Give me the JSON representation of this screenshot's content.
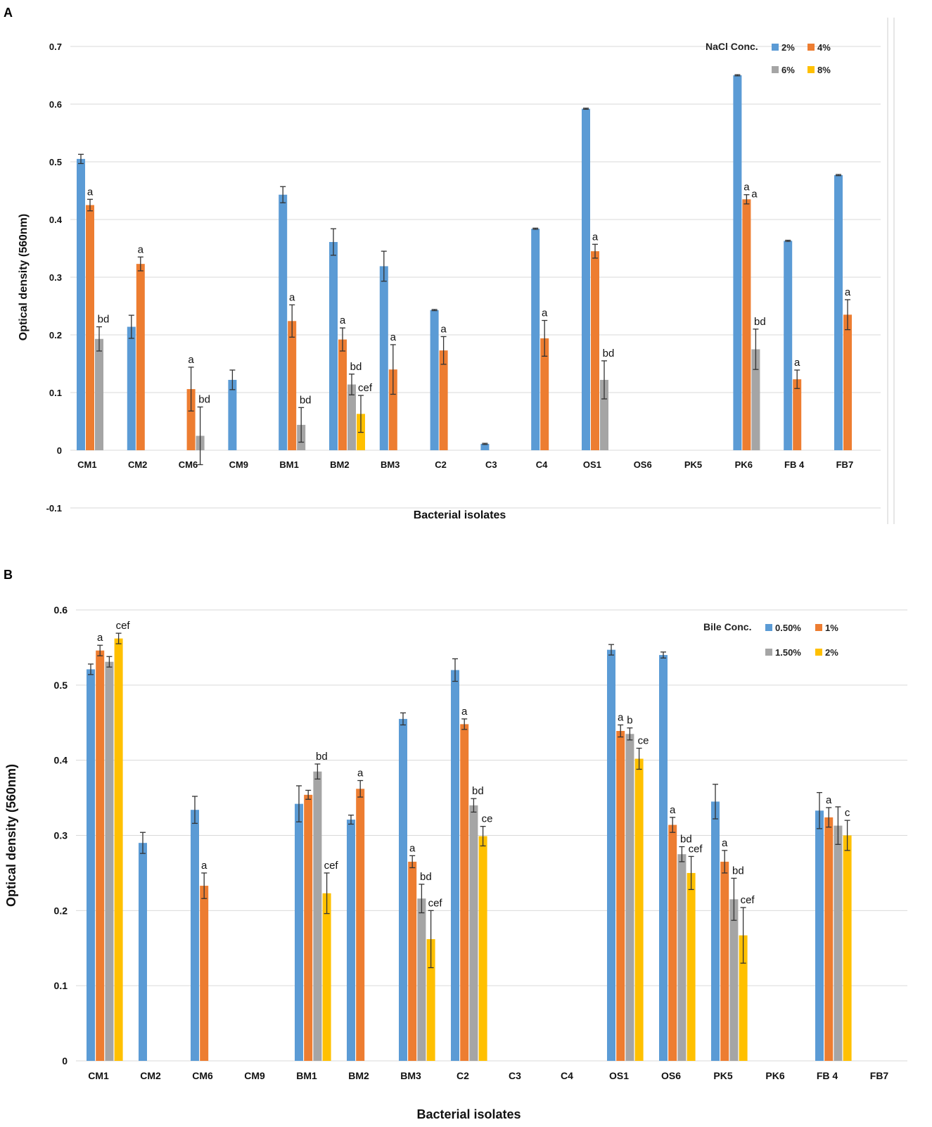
{
  "chart_data": [
    {
      "panel": "A",
      "type": "bar",
      "ylabel": "Optical density (560nm)",
      "xlabel": "Bacterial isolates",
      "ylim": [
        -0.1,
        0.7
      ],
      "yticks": [
        -0.1,
        0,
        0.1,
        0.2,
        0.3,
        0.4,
        0.5,
        0.6,
        0.7
      ],
      "legend_title": "NaCl Conc.",
      "legend_position": "top-right",
      "categories": [
        "CM1",
        "CM2",
        "CM6",
        "CM9",
        "BM1",
        "BM2",
        "BM3",
        "C2",
        "C3",
        "C4",
        "OS1",
        "OS6",
        "PK5",
        "PK6",
        "FB 4",
        "FB7"
      ],
      "series": [
        {
          "name": "2%",
          "color": "#5B9BD5",
          "values": [
            0.505,
            0.214,
            0,
            0.122,
            0.443,
            0.361,
            0.319,
            0.243,
            0.011,
            0.384,
            0.592,
            0,
            0,
            0.65,
            0.363,
            0.477
          ],
          "errors": [
            0.008,
            0.02,
            0,
            0.017,
            0.014,
            0.023,
            0.026,
            0.001,
            0.001,
            0.001,
            0.001,
            0,
            0,
            0.001,
            0.001,
            0.001
          ],
          "labels": [
            "",
            "",
            "",
            "",
            "",
            "",
            "",
            "",
            "",
            "",
            "",
            "",
            "",
            "",
            "",
            ""
          ]
        },
        {
          "name": "4%",
          "color": "#ED7D31",
          "values": [
            0.425,
            0.323,
            0.106,
            0,
            0.224,
            0.192,
            0.14,
            0.173,
            0,
            0.194,
            0.345,
            0,
            0,
            0.435,
            0.123,
            0.235
          ],
          "errors": [
            0.01,
            0.012,
            0.038,
            0,
            0.028,
            0.02,
            0.043,
            0.024,
            0,
            0.031,
            0.012,
            0,
            0,
            0.008,
            0.016,
            0.026
          ],
          "labels": [
            "a",
            "a",
            "a",
            "",
            "a",
            "a",
            "a",
            "a",
            "",
            "a",
            "a",
            "",
            "",
            "a",
            "a",
            "a"
          ]
        },
        {
          "name": "6%",
          "color": "#A5A5A5",
          "values": [
            0.193,
            0,
            0.025,
            0,
            0.044,
            0.114,
            0,
            0,
            0,
            0,
            0.122,
            0,
            0,
            0.175,
            0,
            0
          ],
          "errors": [
            0.021,
            0,
            0.05,
            0,
            0.03,
            0.018,
            0,
            0,
            0,
            0,
            0.033,
            0,
            0,
            0.035,
            0,
            0
          ],
          "labels": [
            "bd",
            "",
            "bd",
            "",
            "bd",
            "bd",
            "",
            "",
            "",
            "",
            "bd",
            "",
            "",
            "bd",
            "",
            ""
          ]
        },
        {
          "name": "8%",
          "color": "#FFC000",
          "values": [
            0,
            0,
            0,
            0,
            0,
            0.063,
            0,
            0,
            0,
            0,
            0,
            0,
            0,
            0,
            0,
            0
          ],
          "errors": [
            0,
            0,
            0,
            0,
            0,
            0.032,
            0,
            0,
            0,
            0,
            0,
            0,
            0,
            0,
            0,
            0
          ],
          "labels": [
            "",
            "",
            "",
            "",
            "",
            "cef",
            "",
            "",
            "",
            "",
            "",
            "",
            "",
            "",
            "",
            ""
          ]
        }
      ],
      "extra_annotations": [
        {
          "category": "PK6",
          "text": "a"
        }
      ]
    },
    {
      "panel": "B",
      "type": "bar",
      "ylabel": "Optical density (560nm)",
      "xlabel": "Bacterial isolates",
      "ylim": [
        0,
        0.6
      ],
      "yticks": [
        0,
        0.1,
        0.2,
        0.3,
        0.4,
        0.5,
        0.6
      ],
      "legend_title": "Bile Conc.",
      "legend_position": "top-right",
      "categories": [
        "CM1",
        "CM2",
        "CM6",
        "CM9",
        "BM1",
        "BM2",
        "BM3",
        "C2",
        "C3",
        "C4",
        "OS1",
        "OS6",
        "PK5",
        "PK6",
        "FB 4",
        "FB7"
      ],
      "series": [
        {
          "name": "0.50%",
          "color": "#5B9BD5",
          "values": [
            0.521,
            0.29,
            0.334,
            0,
            0.342,
            0.321,
            0.455,
            0.52,
            0,
            0,
            0.547,
            0.54,
            0.345,
            0,
            0.333,
            0
          ],
          "errors": [
            0.007,
            0.014,
            0.018,
            0,
            0.024,
            0.006,
            0.008,
            0.015,
            0,
            0,
            0.007,
            0.004,
            0.023,
            0,
            0.024,
            0
          ],
          "labels": [
            "",
            "",
            "",
            "",
            "",
            "",
            "",
            "",
            "",
            "",
            "",
            "",
            "",
            "",
            "",
            ""
          ]
        },
        {
          "name": "1%",
          "color": "#ED7D31",
          "values": [
            0.546,
            0,
            0.233,
            0,
            0.354,
            0.362,
            0.265,
            0.448,
            0,
            0,
            0.439,
            0.314,
            0.265,
            0,
            0.324,
            0
          ],
          "errors": [
            0.007,
            0,
            0.017,
            0,
            0.006,
            0.011,
            0.008,
            0.007,
            0,
            0,
            0.008,
            0.01,
            0.015,
            0,
            0.013,
            0
          ],
          "labels": [
            "a",
            "",
            "a",
            "",
            "",
            "a",
            "a",
            "a",
            "",
            "",
            "a",
            "a",
            "a",
            "",
            "a",
            ""
          ]
        },
        {
          "name": "1.50%",
          "color": "#A5A5A5",
          "values": [
            0.531,
            0,
            0,
            0,
            0.385,
            0,
            0.216,
            0.34,
            0,
            0,
            0.435,
            0.275,
            0.215,
            0,
            0.313,
            0
          ],
          "errors": [
            0.007,
            0,
            0,
            0,
            0.01,
            0,
            0.019,
            0.009,
            0,
            0,
            0.008,
            0.01,
            0.028,
            0,
            0.025,
            0
          ],
          "labels": [
            "",
            "",
            "",
            "",
            "bd",
            "",
            "bd",
            "bd",
            "",
            "",
            "b",
            "bd",
            "bd",
            "",
            "",
            ""
          ]
        },
        {
          "name": "2%",
          "color": "#FFC000",
          "values": [
            0.562,
            0,
            0,
            0,
            0.223,
            0,
            0.162,
            0.299,
            0,
            0,
            0.402,
            0.25,
            0.167,
            0,
            0.3,
            0
          ],
          "errors": [
            0.007,
            0,
            0,
            0,
            0.027,
            0,
            0.038,
            0.013,
            0,
            0,
            0.014,
            0.022,
            0.037,
            0,
            0.02,
            0
          ],
          "labels": [
            "cef",
            "",
            "",
            "",
            "cef",
            "",
            "cef",
            "ce",
            "",
            "",
            "ce",
            "cef",
            "cef",
            "",
            "c",
            ""
          ]
        }
      ]
    }
  ]
}
